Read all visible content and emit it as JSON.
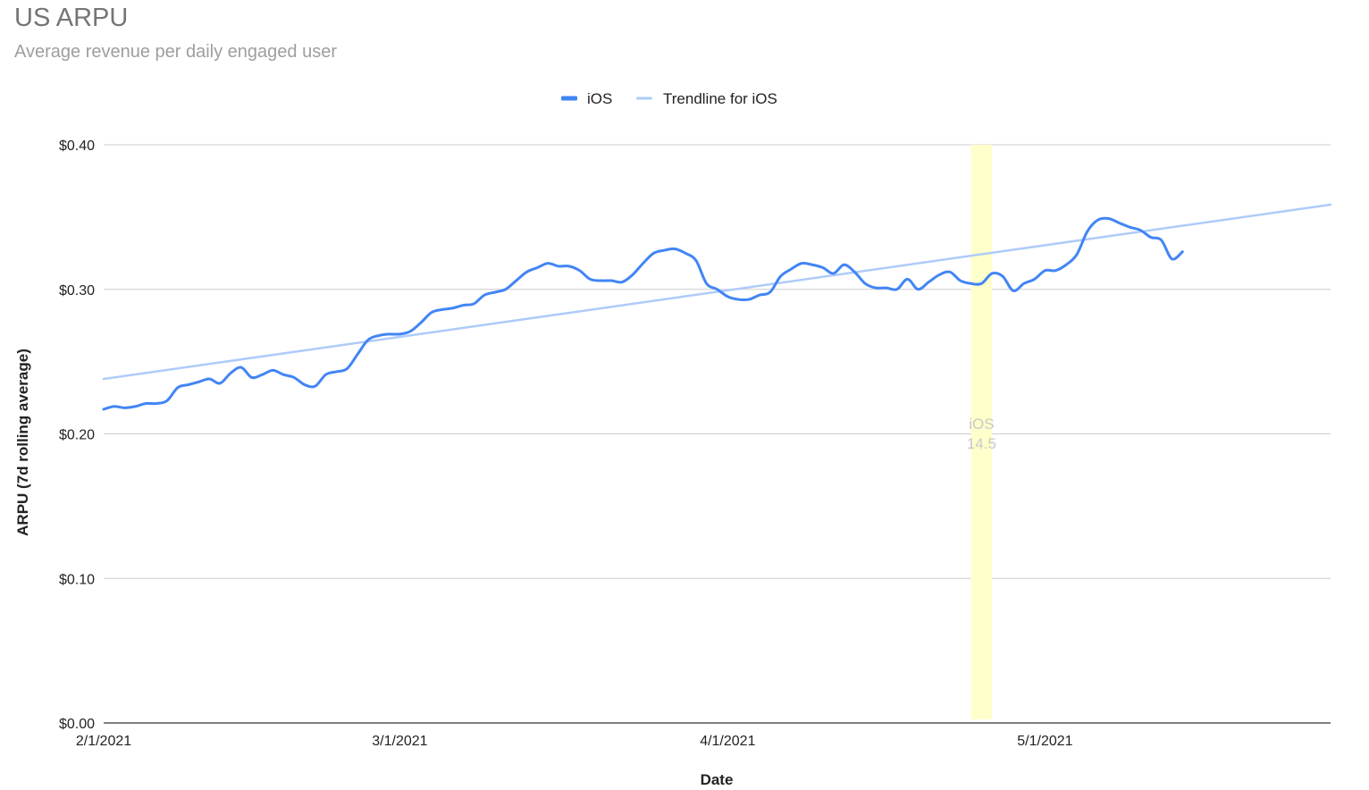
{
  "chart_data": {
    "type": "line",
    "title": "US ARPU",
    "subtitle": "Average revenue per daily engaged user",
    "xlabel": "Date",
    "ylabel": "ARPU (7d rolling average)",
    "x_start": "2/1/2021",
    "x_end": "5/28/2021",
    "x_ticks": [
      "2/1/2021",
      "3/1/2021",
      "4/1/2021",
      "5/1/2021"
    ],
    "y_ticks": [
      "$0.00",
      "$0.10",
      "$0.20",
      "$0.30",
      "$0.40"
    ],
    "ylim": [
      0,
      0.4
    ],
    "grid": true,
    "legend_position": "top",
    "series": [
      {
        "name": "iOS",
        "color": "#4285f4",
        "points": [
          [
            "2/1/2021",
            0.217
          ],
          [
            "2/2/2021",
            0.219
          ],
          [
            "2/3/2021",
            0.218
          ],
          [
            "2/4/2021",
            0.219
          ],
          [
            "2/5/2021",
            0.221
          ],
          [
            "2/6/2021",
            0.221
          ],
          [
            "2/7/2021",
            0.223
          ],
          [
            "2/8/2021",
            0.232
          ],
          [
            "2/9/2021",
            0.234
          ],
          [
            "2/10/2021",
            0.236
          ],
          [
            "2/11/2021",
            0.238
          ],
          [
            "2/12/2021",
            0.235
          ],
          [
            "2/13/2021",
            0.242
          ],
          [
            "2/14/2021",
            0.246
          ],
          [
            "2/15/2021",
            0.239
          ],
          [
            "2/16/2021",
            0.241
          ],
          [
            "2/17/2021",
            0.244
          ],
          [
            "2/18/2021",
            0.241
          ],
          [
            "2/19/2021",
            0.239
          ],
          [
            "2/20/2021",
            0.234
          ],
          [
            "2/21/2021",
            0.233
          ],
          [
            "2/22/2021",
            0.241
          ],
          [
            "2/23/2021",
            0.243
          ],
          [
            "2/24/2021",
            0.245
          ],
          [
            "2/25/2021",
            0.255
          ],
          [
            "2/26/2021",
            0.265
          ],
          [
            "2/27/2021",
            0.268
          ],
          [
            "2/28/2021",
            0.269
          ],
          [
            "3/1/2021",
            0.269
          ],
          [
            "3/2/2021",
            0.271
          ],
          [
            "3/3/2021",
            0.277
          ],
          [
            "3/4/2021",
            0.284
          ],
          [
            "3/5/2021",
            0.286
          ],
          [
            "3/6/2021",
            0.287
          ],
          [
            "3/7/2021",
            0.289
          ],
          [
            "3/8/2021",
            0.29
          ],
          [
            "3/9/2021",
            0.296
          ],
          [
            "3/10/2021",
            0.298
          ],
          [
            "3/11/2021",
            0.3
          ],
          [
            "3/12/2021",
            0.306
          ],
          [
            "3/13/2021",
            0.312
          ],
          [
            "3/14/2021",
            0.315
          ],
          [
            "3/15/2021",
            0.318
          ],
          [
            "3/16/2021",
            0.316
          ],
          [
            "3/17/2021",
            0.316
          ],
          [
            "3/18/2021",
            0.313
          ],
          [
            "3/19/2021",
            0.307
          ],
          [
            "3/20/2021",
            0.306
          ],
          [
            "3/21/2021",
            0.306
          ],
          [
            "3/22/2021",
            0.305
          ],
          [
            "3/23/2021",
            0.31
          ],
          [
            "3/24/2021",
            0.318
          ],
          [
            "3/25/2021",
            0.325
          ],
          [
            "3/26/2021",
            0.327
          ],
          [
            "3/27/2021",
            0.328
          ],
          [
            "3/28/2021",
            0.325
          ],
          [
            "3/29/2021",
            0.32
          ],
          [
            "3/30/2021",
            0.304
          ],
          [
            "3/31/2021",
            0.3
          ],
          [
            "4/1/2021",
            0.295
          ],
          [
            "4/2/2021",
            0.293
          ],
          [
            "4/3/2021",
            0.293
          ],
          [
            "4/4/2021",
            0.296
          ],
          [
            "4/5/2021",
            0.298
          ],
          [
            "4/6/2021",
            0.309
          ],
          [
            "4/7/2021",
            0.314
          ],
          [
            "4/8/2021",
            0.318
          ],
          [
            "4/9/2021",
            0.317
          ],
          [
            "4/10/2021",
            0.315
          ],
          [
            "4/11/2021",
            0.311
          ],
          [
            "4/12/2021",
            0.317
          ],
          [
            "4/13/2021",
            0.312
          ],
          [
            "4/14/2021",
            0.304
          ],
          [
            "4/15/2021",
            0.301
          ],
          [
            "4/16/2021",
            0.301
          ],
          [
            "4/17/2021",
            0.3
          ],
          [
            "4/18/2021",
            0.307
          ],
          [
            "4/19/2021",
            0.3
          ],
          [
            "4/20/2021",
            0.305
          ],
          [
            "4/21/2021",
            0.31
          ],
          [
            "4/22/2021",
            0.312
          ],
          [
            "4/23/2021",
            0.306
          ],
          [
            "4/24/2021",
            0.304
          ],
          [
            "4/25/2021",
            0.304
          ],
          [
            "4/26/2021",
            0.311
          ],
          [
            "4/27/2021",
            0.309
          ],
          [
            "4/28/2021",
            0.299
          ],
          [
            "4/29/2021",
            0.304
          ],
          [
            "4/30/2021",
            0.307
          ],
          [
            "5/1/2021",
            0.313
          ],
          [
            "5/2/2021",
            0.313
          ],
          [
            "5/3/2021",
            0.317
          ],
          [
            "5/4/2021",
            0.324
          ],
          [
            "5/5/2021",
            0.34
          ],
          [
            "5/6/2021",
            0.348
          ],
          [
            "5/7/2021",
            0.349
          ],
          [
            "5/8/2021",
            0.346
          ],
          [
            "5/9/2021",
            0.343
          ],
          [
            "5/10/2021",
            0.341
          ],
          [
            "5/11/2021",
            0.336
          ],
          [
            "5/12/2021",
            0.334
          ],
          [
            "5/13/2021",
            0.321
          ],
          [
            "5/14/2021",
            0.326
          ]
        ]
      },
      {
        "name": "Trendline for iOS",
        "color": "#aecbfa",
        "type": "trendline",
        "points": [
          [
            "2/1/2021",
            0.238
          ],
          [
            "5/14/2021",
            0.344
          ]
        ]
      }
    ],
    "annotations": [
      {
        "label": "iOS 14.5",
        "label_lines": [
          "iOS",
          "14.5"
        ],
        "from": "4/24/2021",
        "to": "4/26/2021",
        "color": "#ffffcc"
      }
    ]
  }
}
